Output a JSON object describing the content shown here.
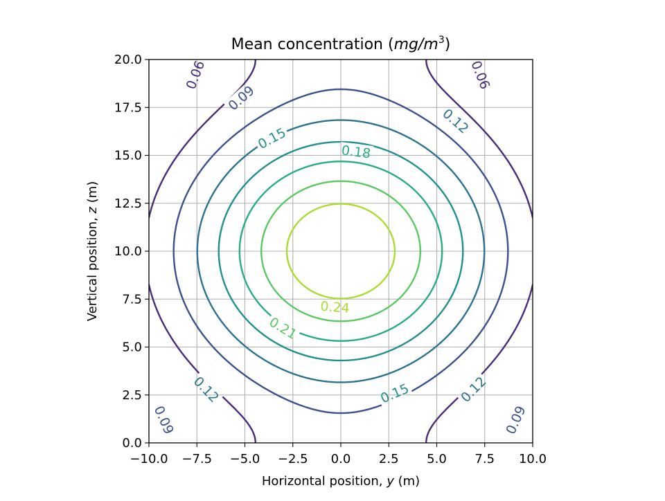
{
  "chart_data": {
    "type": "contour",
    "title_parts": {
      "plain": "Mean concentration (",
      "math": "mg/m",
      "sup": "3",
      "close": ")"
    },
    "xlabel_parts": {
      "plain": "Horizontal position, ",
      "var": "y",
      "unit": " (m)"
    },
    "ylabel_parts": {
      "plain": "Vertical position, ",
      "var": "z",
      "unit": " (m)"
    },
    "xlim": [
      -10.0,
      10.0
    ],
    "ylim": [
      0.0,
      20.0
    ],
    "x_ticks": [
      -10.0,
      -7.5,
      -5.0,
      -2.5,
      0.0,
      2.5,
      5.0,
      7.5,
      10.0
    ],
    "x_tick_labels": [
      "−10.0",
      "−7.5",
      "−5.0",
      "−2.5",
      "0.0",
      "2.5",
      "5.0",
      "7.5",
      "10.0"
    ],
    "y_ticks": [
      0.0,
      2.5,
      5.0,
      7.5,
      10.0,
      12.5,
      15.0,
      17.5,
      20.0
    ],
    "y_tick_labels": [
      "0.0",
      "2.5",
      "5.0",
      "7.5",
      "10.0",
      "12.5",
      "15.0",
      "17.5",
      "20.0"
    ],
    "grid": true,
    "colormap": "viridis",
    "levels": [
      {
        "value": 0.06,
        "label": "0.06",
        "color": "#472c7a"
      },
      {
        "value": 0.09,
        "label": "0.09",
        "color": "#3b518b"
      },
      {
        "value": 0.12,
        "label": "0.12",
        "color": "#2c718e"
      },
      {
        "value": 0.15,
        "label": "0.15",
        "color": "#21908d"
      },
      {
        "value": 0.18,
        "label": "0.18",
        "color": "#27ad81"
      },
      {
        "value": 0.21,
        "label": "0.21",
        "color": "#5cc863"
      },
      {
        "value": 0.24,
        "label": "0.24",
        "color": "#aadc32"
      }
    ],
    "field": {
      "center_y": 0.0,
      "center_z": 10.0
    },
    "contour_label_positions": [
      {
        "label": "0.06",
        "y": -7.6,
        "z": 19.2
      },
      {
        "label": "0.06",
        "y": 7.3,
        "z": 19.2
      },
      {
        "label": "0.09",
        "y": -5.2,
        "z": 18.0
      },
      {
        "label": "0.09",
        "y": -9.2,
        "z": 1.2
      },
      {
        "label": "0.09",
        "y": 9.1,
        "z": 1.2
      },
      {
        "label": "0.12",
        "y": 6.0,
        "z": 16.8
      },
      {
        "label": "0.12",
        "y": -7.0,
        "z": 2.8
      },
      {
        "label": "0.12",
        "y": 6.9,
        "z": 2.8
      },
      {
        "label": "0.15",
        "y": -3.6,
        "z": 15.9
      },
      {
        "label": "0.15",
        "y": 2.8,
        "z": 2.6
      },
      {
        "label": "0.18",
        "y": 0.8,
        "z": 15.2
      },
      {
        "label": "0.21",
        "y": -3.0,
        "z": 6.0
      },
      {
        "label": "0.24",
        "y": -0.3,
        "z": 7.1
      }
    ]
  }
}
